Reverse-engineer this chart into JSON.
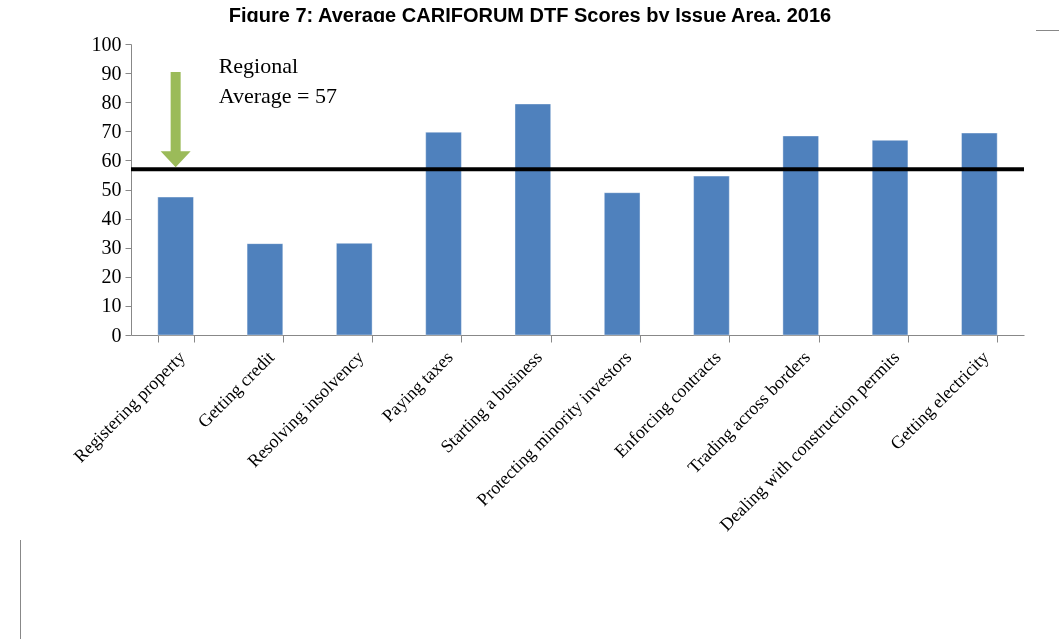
{
  "chart_data": {
    "type": "bar",
    "title": "Figure 7: Average CARIFORUM DTF Scores by Issue Area, 2016",
    "categories": [
      "Registering property",
      "Getting credit",
      "Resolving insolvency",
      "Paying taxes",
      "Starting a business",
      "Protecting minority investors",
      "Enforcing contracts",
      "Trading across borders",
      "Dealing with construction permits",
      "Getting electricity"
    ],
    "values": [
      47.4,
      31.4,
      31.5,
      69.7,
      79.4,
      48.9,
      54.6,
      68.4,
      66.9,
      69.4
    ],
    "color": "#4f81bd",
    "ylim": [
      0,
      100
    ],
    "yticks": [
      0,
      10,
      20,
      30,
      40,
      50,
      60,
      70,
      80,
      90,
      100
    ],
    "ref_lines": [
      {
        "axis": "y",
        "value": 57,
        "label": "Regional\nAverage = 57",
        "color": "#000000"
      }
    ]
  }
}
